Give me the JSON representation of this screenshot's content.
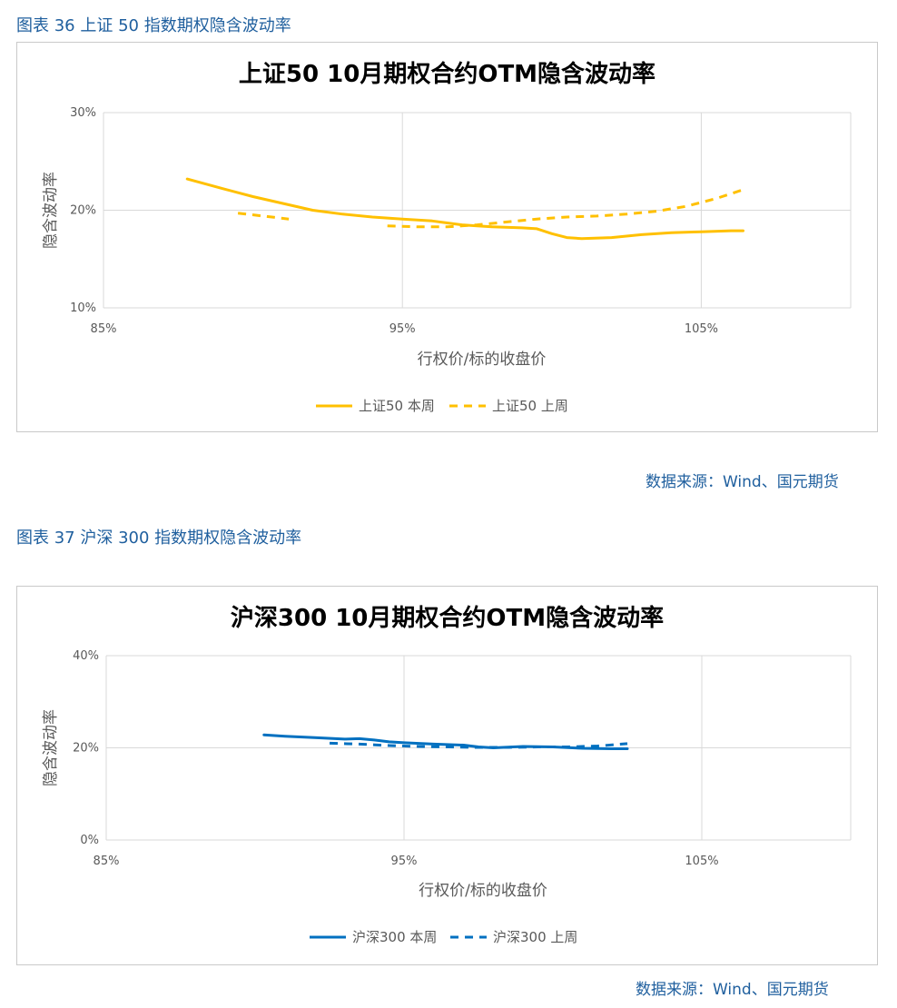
{
  "figures": [
    {
      "caption": "图表 36 上证 50 指数期权隐含波动率",
      "source": "数据来源：Wind、国元期货"
    },
    {
      "caption": "图表 37 沪深 300 指数期权隐含波动率",
      "source": "数据来源：Wind、国元期货"
    }
  ],
  "chart_data": [
    {
      "type": "line",
      "title": "上证50 10月期权合约OTM隐含波动率",
      "xlabel": "行权价/标的收盘价",
      "ylabel": "隐含波动率",
      "xlim": [
        0.85,
        1.1
      ],
      "ylim": [
        0.1,
        0.3
      ],
      "x_ticks": [
        0.85,
        0.95,
        1.05
      ],
      "x_tick_labels": [
        "85%",
        "95%",
        "105%"
      ],
      "y_ticks": [
        0.1,
        0.2,
        0.3
      ],
      "y_tick_labels": [
        "10%",
        "20%",
        "30%"
      ],
      "grid": true,
      "legend_position": "bottom",
      "series": [
        {
          "name": "上证50 本周",
          "color": "#FFC000",
          "dash": false,
          "x": [
            0.878,
            0.89,
            0.9,
            0.91,
            0.92,
            0.93,
            0.94,
            0.95,
            0.96,
            0.965,
            0.97,
            0.975,
            0.98,
            0.99,
            0.995,
            1.0,
            1.005,
            1.01,
            1.02,
            1.03,
            1.04,
            1.05,
            1.06,
            1.064
          ],
          "y": [
            0.232,
            0.222,
            0.214,
            0.207,
            0.2,
            0.196,
            0.193,
            0.191,
            0.189,
            0.187,
            0.185,
            0.184,
            0.183,
            0.182,
            0.181,
            0.176,
            0.172,
            0.171,
            0.172,
            0.175,
            0.177,
            0.178,
            0.179,
            0.179
          ]
        },
        {
          "name": "上证50 上周",
          "color": "#FFC000",
          "dash": true,
          "segments": [
            {
              "x": [
                0.895,
                0.912
              ],
              "y": [
                0.197,
                0.191
              ]
            },
            {
              "x": [
                0.945,
                0.955,
                0.965,
                0.975,
                0.985,
                0.995,
                1.005,
                1.015,
                1.025,
                1.035,
                1.045,
                1.055,
                1.064
              ],
              "y": [
                0.184,
                0.183,
                0.183,
                0.185,
                0.188,
                0.191,
                0.193,
                0.194,
                0.196,
                0.199,
                0.204,
                0.212,
                0.221
              ]
            }
          ]
        }
      ]
    },
    {
      "type": "line",
      "title": "沪深300 10月期权合约OTM隐含波动率",
      "xlabel": "行权价/标的收盘价",
      "ylabel": "隐含波动率",
      "xlim": [
        0.85,
        1.1
      ],
      "ylim": [
        0.0,
        0.4
      ],
      "x_ticks": [
        0.85,
        0.95,
        1.05
      ],
      "x_tick_labels": [
        "85%",
        "95%",
        "105%"
      ],
      "y_ticks": [
        0.0,
        0.2,
        0.4
      ],
      "y_tick_labels": [
        "0%",
        "20%",
        "40%"
      ],
      "grid": true,
      "legend_position": "bottom",
      "series": [
        {
          "name": "沪深300 本周",
          "color": "#0070C0",
          "dash": false,
          "x": [
            0.903,
            0.91,
            0.92,
            0.93,
            0.935,
            0.94,
            0.945,
            0.95,
            0.96,
            0.97,
            0.975,
            0.98,
            0.99,
            1.0,
            1.01,
            1.02,
            1.025
          ],
          "y": [
            0.228,
            0.225,
            0.222,
            0.219,
            0.22,
            0.217,
            0.213,
            0.211,
            0.208,
            0.206,
            0.202,
            0.2,
            0.203,
            0.202,
            0.199,
            0.198,
            0.198
          ]
        },
        {
          "name": "沪深300 上周",
          "color": "#0070C0",
          "dash": true,
          "x": [
            0.925,
            0.935,
            0.945,
            0.955,
            0.965,
            0.975,
            0.985,
            0.995,
            1.005,
            1.015,
            1.025
          ],
          "y": [
            0.21,
            0.208,
            0.205,
            0.203,
            0.202,
            0.201,
            0.201,
            0.202,
            0.202,
            0.204,
            0.209
          ]
        }
      ]
    }
  ]
}
